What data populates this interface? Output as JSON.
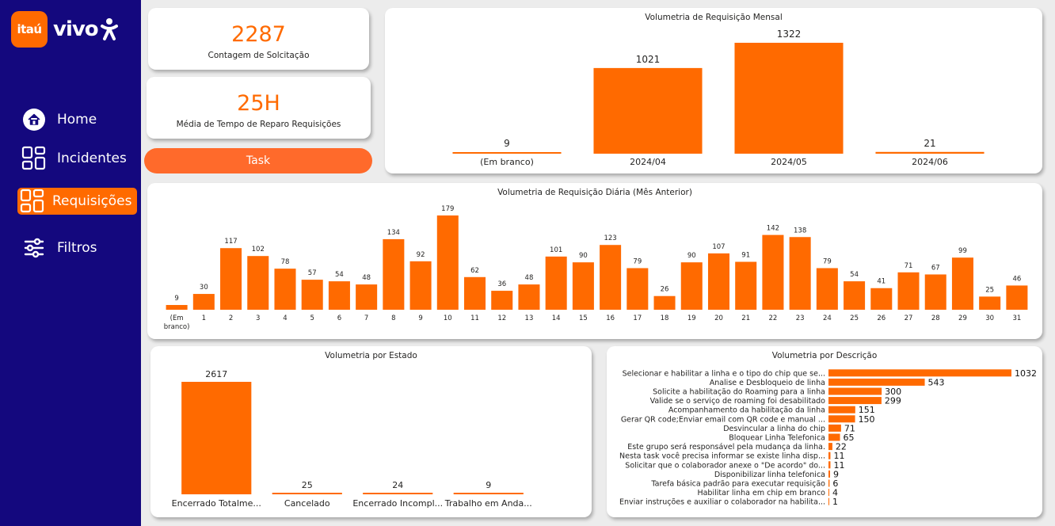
{
  "brand": {
    "itau": "itaú",
    "vivo": "vivo",
    "accent": "#ff6a00",
    "sidebar_bg": "#14087e"
  },
  "nav": {
    "items": [
      {
        "label": "Home",
        "icon": "home-icon"
      },
      {
        "label": "Incidentes",
        "icon": "grid-icon"
      },
      {
        "label": "Requisições",
        "icon": "grid-icon",
        "active": true
      },
      {
        "label": "Filtros",
        "icon": "sliders-icon"
      }
    ]
  },
  "kpis": [
    {
      "value": "2287",
      "label": "Contagem de Solcitação"
    },
    {
      "value": "25H",
      "label": "Média de Tempo de Reparo Requisições"
    }
  ],
  "task_button": "Task",
  "chart_data": [
    {
      "id": "monthly",
      "type": "bar",
      "title": "Volumetria de Requisição Mensal",
      "categories": [
        "(Em branco)",
        "2024/04",
        "2024/05",
        "2024/06"
      ],
      "values": [
        9,
        1021,
        1322,
        21
      ],
      "ylim": [
        0,
        1322
      ]
    },
    {
      "id": "daily",
      "type": "bar",
      "title": "Volumetria de Requisição Diária (Mês Anterior)",
      "categories": [
        "(Em branco)",
        "1",
        "2",
        "3",
        "4",
        "5",
        "6",
        "7",
        "8",
        "9",
        "10",
        "11",
        "12",
        "13",
        "14",
        "15",
        "16",
        "17",
        "18",
        "19",
        "20",
        "21",
        "22",
        "23",
        "24",
        "25",
        "26",
        "27",
        "28",
        "29",
        "30",
        "31"
      ],
      "values": [
        9,
        30,
        117,
        102,
        78,
        57,
        54,
        48,
        134,
        92,
        179,
        62,
        36,
        48,
        101,
        90,
        123,
        79,
        26,
        90,
        107,
        91,
        142,
        138,
        79,
        54,
        41,
        71,
        67,
        99,
        25,
        46
      ],
      "ylim": [
        0,
        179
      ]
    },
    {
      "id": "estado",
      "type": "bar",
      "title": "Volumetria por Estado",
      "categories": [
        "Encerrado Totalme...",
        "Cancelado",
        "Encerrado Incompl...",
        "Trabalho em Anda..."
      ],
      "values": [
        2617,
        25,
        24,
        9
      ],
      "ylim": [
        0,
        2617
      ]
    },
    {
      "id": "descricao",
      "type": "bar",
      "orientation": "horizontal",
      "title": "Volumetria por Descrição",
      "categories": [
        "Selecionar e habilitar a linha e o tipo do chip que se...",
        "Analise e Desbloqueio de linha",
        "Solicite a habilitação do Roaming para a linha",
        "Valide se o serviço de roaming foi desabilitado",
        "Acompanhamento da habilitação da linha",
        "Gerar QR code;Enviar email com QR code e manual ...",
        "Desvincular a linha do chip",
        "Bloquear Linha Telefonica",
        "Este grupo será responsável pela mudança da linha.",
        "Nesta task você precisa informar se existe linha disp...",
        "Solicitar que o colaborador anexe o \"De acordo\" do...",
        "Disponibilizar linha telefonica",
        "Tarefa básica padrão para executar requisição",
        "Habilitar linha em chip em branco",
        "Enviar instruções e auxiliar o colaborador na habilita..."
      ],
      "values": [
        1032,
        543,
        300,
        299,
        151,
        150,
        71,
        65,
        22,
        11,
        11,
        9,
        6,
        4,
        1
      ],
      "xlim": [
        0,
        1032
      ]
    }
  ]
}
